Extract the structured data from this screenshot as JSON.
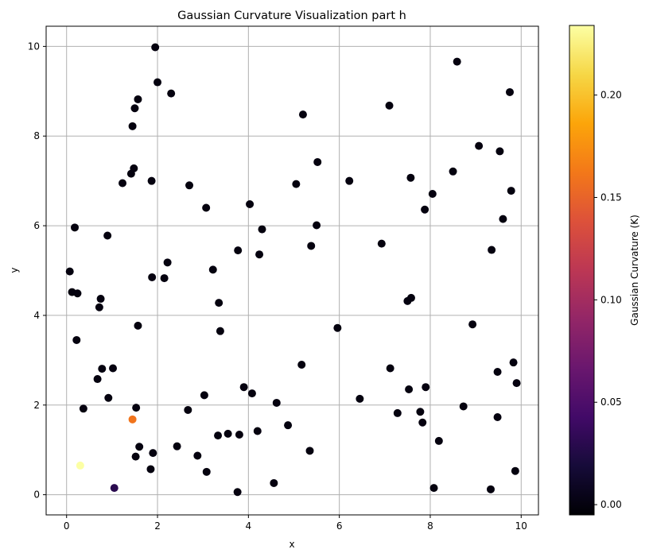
{
  "chart_data": {
    "type": "scatter",
    "title": "Gaussian Curvature Visualization part h",
    "xlabel": "x",
    "ylabel": "y",
    "colorbar_label": "Gaussian Curvature (K)",
    "colormap": "inferno",
    "xlim": [
      -0.45,
      10.38
    ],
    "ylim": [
      -0.45,
      10.45
    ],
    "xticks": [
      "0",
      "2",
      "4",
      "6",
      "8",
      "10"
    ],
    "yticks": [
      "0",
      "2",
      "4",
      "6",
      "8",
      "10"
    ],
    "clim": [
      -0.005,
      0.234
    ],
    "cticks": [
      "0.00",
      "0.05",
      "0.10",
      "0.15",
      "0.20"
    ],
    "grid": true,
    "points": [
      [
        0.3,
        0.65,
        0.234
      ],
      [
        1.45,
        1.68,
        0.16
      ],
      [
        1.05,
        0.15,
        0.03
      ],
      [
        1.95,
        9.98,
        0
      ],
      [
        2.0,
        9.2,
        0
      ],
      [
        1.57,
        8.82,
        0
      ],
      [
        1.5,
        8.62,
        0
      ],
      [
        2.3,
        8.95,
        0
      ],
      [
        1.45,
        8.22,
        0
      ],
      [
        1.48,
        7.28,
        0
      ],
      [
        1.42,
        7.16,
        0
      ],
      [
        1.23,
        6.95,
        0
      ],
      [
        1.87,
        7.0,
        0
      ],
      [
        2.7,
        6.9,
        0
      ],
      [
        3.07,
        6.4,
        0
      ],
      [
        0.18,
        5.96,
        0
      ],
      [
        0.9,
        5.78,
        0
      ],
      [
        0.07,
        4.98,
        0
      ],
      [
        2.22,
        5.18,
        0
      ],
      [
        3.22,
        5.02,
        0
      ],
      [
        1.88,
        4.85,
        0
      ],
      [
        2.15,
        4.83,
        0
      ],
      [
        0.12,
        4.52,
        0
      ],
      [
        0.24,
        4.49,
        0
      ],
      [
        0.75,
        4.37,
        0
      ],
      [
        0.72,
        4.18,
        0
      ],
      [
        3.35,
        4.28,
        0
      ],
      [
        1.57,
        3.77,
        0
      ],
      [
        3.38,
        3.65,
        0
      ],
      [
        0.22,
        3.45,
        0
      ],
      [
        0.78,
        2.81,
        0
      ],
      [
        1.02,
        2.82,
        0
      ],
      [
        0.68,
        2.58,
        0
      ],
      [
        0.92,
        2.16,
        0
      ],
      [
        0.37,
        1.92,
        0
      ],
      [
        1.53,
        1.94,
        0
      ],
      [
        3.03,
        2.22,
        0
      ],
      [
        2.67,
        1.89,
        0
      ],
      [
        1.6,
        1.07,
        0
      ],
      [
        1.9,
        0.93,
        0
      ],
      [
        1.52,
        0.85,
        0
      ],
      [
        2.43,
        1.08,
        0
      ],
      [
        2.88,
        0.87,
        0
      ],
      [
        1.85,
        0.57,
        0
      ],
      [
        3.08,
        0.51,
        0
      ],
      [
        3.33,
        1.32,
        0
      ],
      [
        3.55,
        1.36,
        0
      ],
      [
        3.8,
        1.34,
        0
      ],
      [
        3.76,
        0.06,
        0
      ],
      [
        3.9,
        2.4,
        0
      ],
      [
        4.08,
        2.26,
        0
      ],
      [
        4.2,
        1.42,
        0
      ],
      [
        4.62,
        2.05,
        0
      ],
      [
        4.56,
        0.26,
        0
      ],
      [
        4.87,
        1.55,
        0
      ],
      [
        5.17,
        2.9,
        0
      ],
      [
        5.35,
        0.98,
        0
      ],
      [
        3.77,
        5.45,
        0
      ],
      [
        4.24,
        5.36,
        0
      ],
      [
        4.3,
        5.92,
        0
      ],
      [
        4.03,
        6.48,
        0
      ],
      [
        5.05,
        6.93,
        0
      ],
      [
        5.2,
        8.48,
        0
      ],
      [
        5.52,
        7.42,
        0
      ],
      [
        5.38,
        5.55,
        0
      ],
      [
        5.5,
        6.01,
        0
      ],
      [
        5.96,
        3.72,
        0
      ],
      [
        6.22,
        7.0,
        0
      ],
      [
        6.45,
        2.14,
        0
      ],
      [
        6.93,
        5.6,
        0
      ],
      [
        7.1,
        8.68,
        0
      ],
      [
        7.12,
        2.82,
        0
      ],
      [
        7.28,
        1.82,
        0
      ],
      [
        7.5,
        4.32,
        0
      ],
      [
        7.58,
        4.39,
        0
      ],
      [
        7.53,
        2.35,
        0
      ],
      [
        7.57,
        7.07,
        0
      ],
      [
        7.78,
        1.85,
        0
      ],
      [
        7.83,
        1.61,
        0
      ],
      [
        7.9,
        2.4,
        0
      ],
      [
        7.88,
        6.36,
        0
      ],
      [
        8.05,
        6.71,
        0
      ],
      [
        8.08,
        0.15,
        0
      ],
      [
        8.19,
        1.2,
        0
      ],
      [
        8.5,
        7.21,
        0
      ],
      [
        8.59,
        9.66,
        0
      ],
      [
        8.73,
        1.97,
        0
      ],
      [
        8.93,
        3.8,
        0
      ],
      [
        9.07,
        7.78,
        0
      ],
      [
        9.33,
        0.12,
        0
      ],
      [
        9.35,
        5.46,
        0
      ],
      [
        9.48,
        1.73,
        0
      ],
      [
        9.48,
        2.74,
        0
      ],
      [
        9.53,
        7.66,
        0
      ],
      [
        9.6,
        6.15,
        0
      ],
      [
        9.75,
        8.98,
        0
      ],
      [
        9.78,
        6.78,
        0
      ],
      [
        9.83,
        2.95,
        0
      ],
      [
        9.87,
        0.53,
        0
      ],
      [
        9.9,
        2.49,
        0
      ]
    ]
  }
}
